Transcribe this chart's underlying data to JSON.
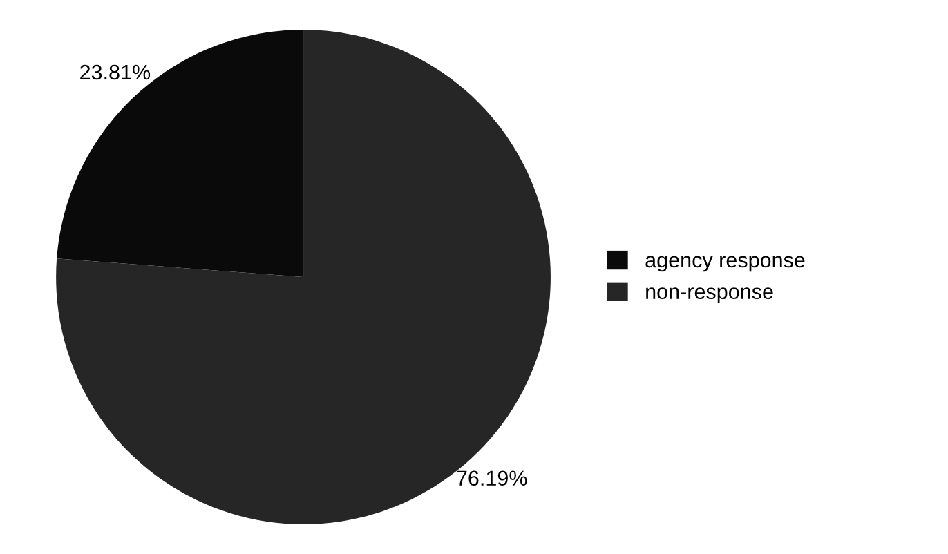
{
  "chart_data": {
    "type": "pie",
    "categories": [
      "agency response",
      "non-response"
    ],
    "values": [
      23.81,
      76.19
    ],
    "colors": [
      "#0a0a0a",
      "#262626"
    ],
    "value_labels": [
      "23.81%",
      "76.19%"
    ],
    "legend": "right"
  }
}
